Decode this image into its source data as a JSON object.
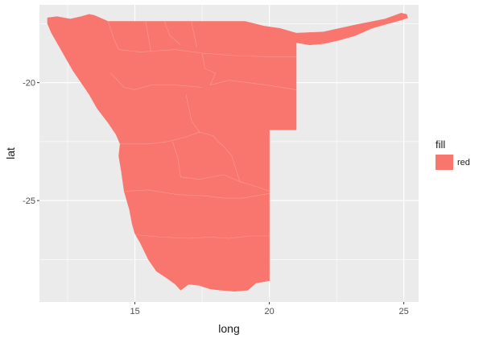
{
  "chart_data": {
    "type": "map",
    "xlabel": "long",
    "ylabel": "lat",
    "xlim": [
      11.45,
      25.55
    ],
    "ylim": [
      -29.3,
      -16.7
    ],
    "x_ticks": [
      15,
      20,
      25
    ],
    "y_ticks": [
      -20,
      -25
    ],
    "grid": true,
    "legend": {
      "title": "fill",
      "entries": [
        {
          "label": "red",
          "color": "#F8766D"
        }
      ],
      "position": "right"
    },
    "fill_color": "#F8766D",
    "panel_background": "#EBEBEB",
    "region_outline": [
      [
        11.75,
        -17.25
      ],
      [
        12.1,
        -17.2
      ],
      [
        12.6,
        -17.3
      ],
      [
        13.0,
        -17.2
      ],
      [
        13.3,
        -17.1
      ],
      [
        13.5,
        -17.15
      ],
      [
        14.0,
        -17.4
      ],
      [
        16.0,
        -17.4
      ],
      [
        17.5,
        -17.4
      ],
      [
        18.5,
        -17.4
      ],
      [
        19.1,
        -17.4
      ],
      [
        19.8,
        -17.6
      ],
      [
        20.4,
        -17.7
      ],
      [
        21.0,
        -17.9
      ],
      [
        22.0,
        -17.85
      ],
      [
        23.2,
        -17.55
      ],
      [
        24.3,
        -17.3
      ],
      [
        24.9,
        -17.05
      ],
      [
        25.1,
        -17.1
      ],
      [
        25.15,
        -17.25
      ],
      [
        24.9,
        -17.35
      ],
      [
        24.4,
        -17.5
      ],
      [
        23.8,
        -17.7
      ],
      [
        23.2,
        -18.0
      ],
      [
        22.6,
        -18.2
      ],
      [
        22.0,
        -18.35
      ],
      [
        21.5,
        -18.4
      ],
      [
        21.0,
        -18.3
      ],
      [
        21.0,
        -22.0
      ],
      [
        20.0,
        -22.0
      ],
      [
        20.0,
        -24.7
      ],
      [
        20.0,
        -26.5
      ],
      [
        20.0,
        -28.4
      ],
      [
        19.5,
        -28.5
      ],
      [
        19.2,
        -28.8
      ],
      [
        18.7,
        -28.85
      ],
      [
        18.2,
        -28.8
      ],
      [
        17.8,
        -28.75
      ],
      [
        17.4,
        -28.6
      ],
      [
        17.0,
        -28.55
      ],
      [
        16.7,
        -28.8
      ],
      [
        16.5,
        -28.55
      ],
      [
        16.2,
        -28.3
      ],
      [
        15.8,
        -28.0
      ],
      [
        15.5,
        -27.5
      ],
      [
        15.2,
        -26.8
      ],
      [
        15.0,
        -26.4
      ],
      [
        14.9,
        -26.0
      ],
      [
        14.8,
        -25.4
      ],
      [
        14.6,
        -24.6
      ],
      [
        14.5,
        -23.8
      ],
      [
        14.4,
        -23.1
      ],
      [
        14.45,
        -22.6
      ],
      [
        14.3,
        -22.2
      ],
      [
        14.0,
        -21.7
      ],
      [
        13.6,
        -21.1
      ],
      [
        13.3,
        -20.5
      ],
      [
        13.0,
        -20.0
      ],
      [
        12.7,
        -19.5
      ],
      [
        12.4,
        -18.9
      ],
      [
        12.15,
        -18.4
      ],
      [
        11.9,
        -17.9
      ],
      [
        11.75,
        -17.5
      ]
    ],
    "internal_boundaries": [
      [
        [
          14.0,
          -17.4
        ],
        [
          14.2,
          -18.1
        ],
        [
          14.4,
          -18.6
        ],
        [
          15.2,
          -18.7
        ],
        [
          16.5,
          -18.6
        ],
        [
          17.5,
          -18.75
        ],
        [
          18.7,
          -18.85
        ],
        [
          19.9,
          -18.9
        ],
        [
          21.0,
          -18.9
        ]
      ],
      [
        [
          15.4,
          -17.4
        ],
        [
          15.6,
          -18.7
        ]
      ],
      [
        [
          16.1,
          -17.4
        ],
        [
          16.3,
          -18.0
        ],
        [
          16.7,
          -18.4
        ]
      ],
      [
        [
          17.1,
          -17.4
        ],
        [
          17.3,
          -18.5
        ]
      ],
      [
        [
          17.5,
          -18.75
        ],
        [
          17.6,
          -19.4
        ],
        [
          18.0,
          -19.6
        ],
        [
          17.8,
          -20.1
        ],
        [
          18.5,
          -19.9
        ],
        [
          19.9,
          -20.1
        ],
        [
          21.0,
          -20.3
        ]
      ],
      [
        [
          14.1,
          -19.6
        ],
        [
          14.6,
          -20.2
        ],
        [
          15.0,
          -20.3
        ],
        [
          15.6,
          -20.1
        ],
        [
          16.5,
          -20.1
        ],
        [
          17.5,
          -20.2
        ]
      ],
      [
        [
          14.45,
          -22.6
        ],
        [
          15.5,
          -22.6
        ],
        [
          16.2,
          -22.5
        ],
        [
          16.9,
          -22.3
        ],
        [
          17.4,
          -22.1
        ],
        [
          17.9,
          -22.25
        ],
        [
          18.1,
          -22.5
        ],
        [
          18.3,
          -22.7
        ]
      ],
      [
        [
          16.9,
          -20.5
        ],
        [
          17.1,
          -21.6
        ],
        [
          17.4,
          -22.1
        ]
      ],
      [
        [
          16.4,
          -22.5
        ],
        [
          16.6,
          -23.2
        ],
        [
          16.7,
          -24.0
        ],
        [
          17.4,
          -24.1
        ],
        [
          18.3,
          -23.9
        ],
        [
          18.9,
          -24.2
        ],
        [
          19.5,
          -24.4
        ],
        [
          20.0,
          -24.6
        ]
      ],
      [
        [
          18.3,
          -22.7
        ],
        [
          18.6,
          -23.1
        ],
        [
          18.9,
          -24.2
        ]
      ],
      [
        [
          14.65,
          -24.6
        ],
        [
          15.5,
          -24.55
        ],
        [
          16.6,
          -24.75
        ],
        [
          17.6,
          -24.8
        ],
        [
          18.3,
          -24.9
        ],
        [
          19.0,
          -24.9
        ],
        [
          20.0,
          -24.7
        ]
      ],
      [
        [
          15.0,
          -26.45
        ],
        [
          16.0,
          -26.55
        ],
        [
          17.0,
          -26.6
        ],
        [
          17.8,
          -26.55
        ],
        [
          18.5,
          -26.6
        ],
        [
          19.3,
          -26.5
        ],
        [
          20.0,
          -26.5
        ]
      ]
    ]
  }
}
